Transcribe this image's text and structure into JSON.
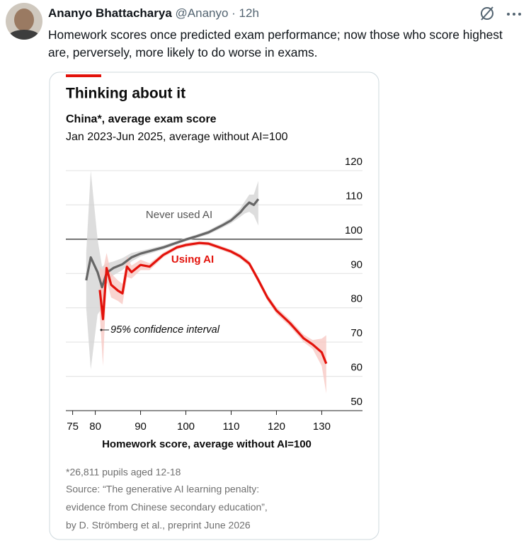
{
  "tweet": {
    "author": "Ananyo Bhattacharya",
    "handle": "@Ananyo",
    "time": "12h",
    "text": "Homework scores once predicted exam performance; now those who score highest are, perversely, more likely to do worse in exams."
  },
  "chart_data": {
    "type": "line",
    "title": "Thinking about it",
    "subtitle": "China*, average exam score",
    "subtitle2": "Jan 2023-Jun 2025, average without AI=100",
    "x_label": "Homework score, average without AI=100",
    "annotation": "95% confidence interval",
    "xlim": [
      73.5,
      139
    ],
    "xticks": [
      75,
      80,
      90,
      100,
      110,
      120,
      130
    ],
    "ylim": [
      50,
      120
    ],
    "yticks": [
      50,
      60,
      70,
      80,
      90,
      100,
      110,
      120
    ],
    "reference_y": 100,
    "grid": true,
    "series": [
      {
        "name": "Never used AI",
        "color": "#666666",
        "band_color": "#d4d4d4",
        "x": [
          78,
          79,
          80.5,
          81.5,
          82.5,
          84,
          86,
          88,
          90,
          95,
          100,
          102,
          105,
          108,
          110,
          112,
          113,
          114,
          115,
          116
        ],
        "values": [
          88,
          94.7,
          90.4,
          86,
          90.2,
          91.6,
          92.7,
          94.7,
          95.8,
          97.6,
          99.9,
          100.7,
          102,
          104,
          105.5,
          107.8,
          109.4,
          110.7,
          110,
          111.7
        ],
        "lower": [
          80,
          62,
          78,
          80,
          87,
          89.5,
          91,
          93.5,
          95,
          97,
          99.4,
          100.2,
          101.4,
          103.3,
          104.7,
          106.5,
          107.5,
          108,
          107,
          104
        ],
        "upper": [
          96,
          120,
          100,
          92,
          93,
          93.5,
          94.5,
          96,
          96.6,
          98.2,
          100.4,
          101.2,
          102.6,
          104.7,
          106.3,
          109,
          111,
          113,
          113,
          117
        ]
      },
      {
        "name": "Using AI",
        "color": "#e3120b",
        "band_color": "#f8c9c4",
        "x": [
          81,
          81.7,
          82.5,
          83.5,
          85,
          86,
          87,
          88,
          90,
          92,
          95,
          98,
          100,
          103,
          105,
          107,
          110,
          112,
          114,
          116,
          118,
          120,
          123,
          126,
          128,
          130,
          131
        ],
        "values": [
          85.2,
          76.7,
          91.6,
          86.7,
          85,
          84.2,
          92,
          90.4,
          92.5,
          92,
          95.4,
          97.6,
          98.3,
          98.9,
          98.7,
          97.8,
          96.4,
          95,
          92.9,
          88.1,
          83,
          79.2,
          75.5,
          71.1,
          69.3,
          67,
          63.7
        ],
        "lower": [
          78,
          63,
          88,
          83,
          82,
          81,
          89,
          88.5,
          91,
          91,
          94.7,
          97,
          97.7,
          98.3,
          98.1,
          97.2,
          95.8,
          94.3,
          92.1,
          87.2,
          82.1,
          78.2,
          74.5,
          70,
          68,
          63,
          55
        ],
        "upper": [
          92,
          91,
          96,
          90,
          88,
          87,
          95,
          92.3,
          94,
          93,
          96.1,
          98.2,
          98.9,
          99.5,
          99.3,
          98.4,
          97,
          95.7,
          93.7,
          89,
          83.9,
          80.2,
          76.5,
          72.2,
          70.6,
          71,
          72
        ]
      }
    ],
    "footnote": [
      "*26,811 pupils aged 12-18"
    ],
    "source": [
      "Source: “The generative AI learning penalty:",
      "evidence from Chinese secondary education”,",
      "by D. Strömberg et al., preprint June 2026"
    ]
  }
}
